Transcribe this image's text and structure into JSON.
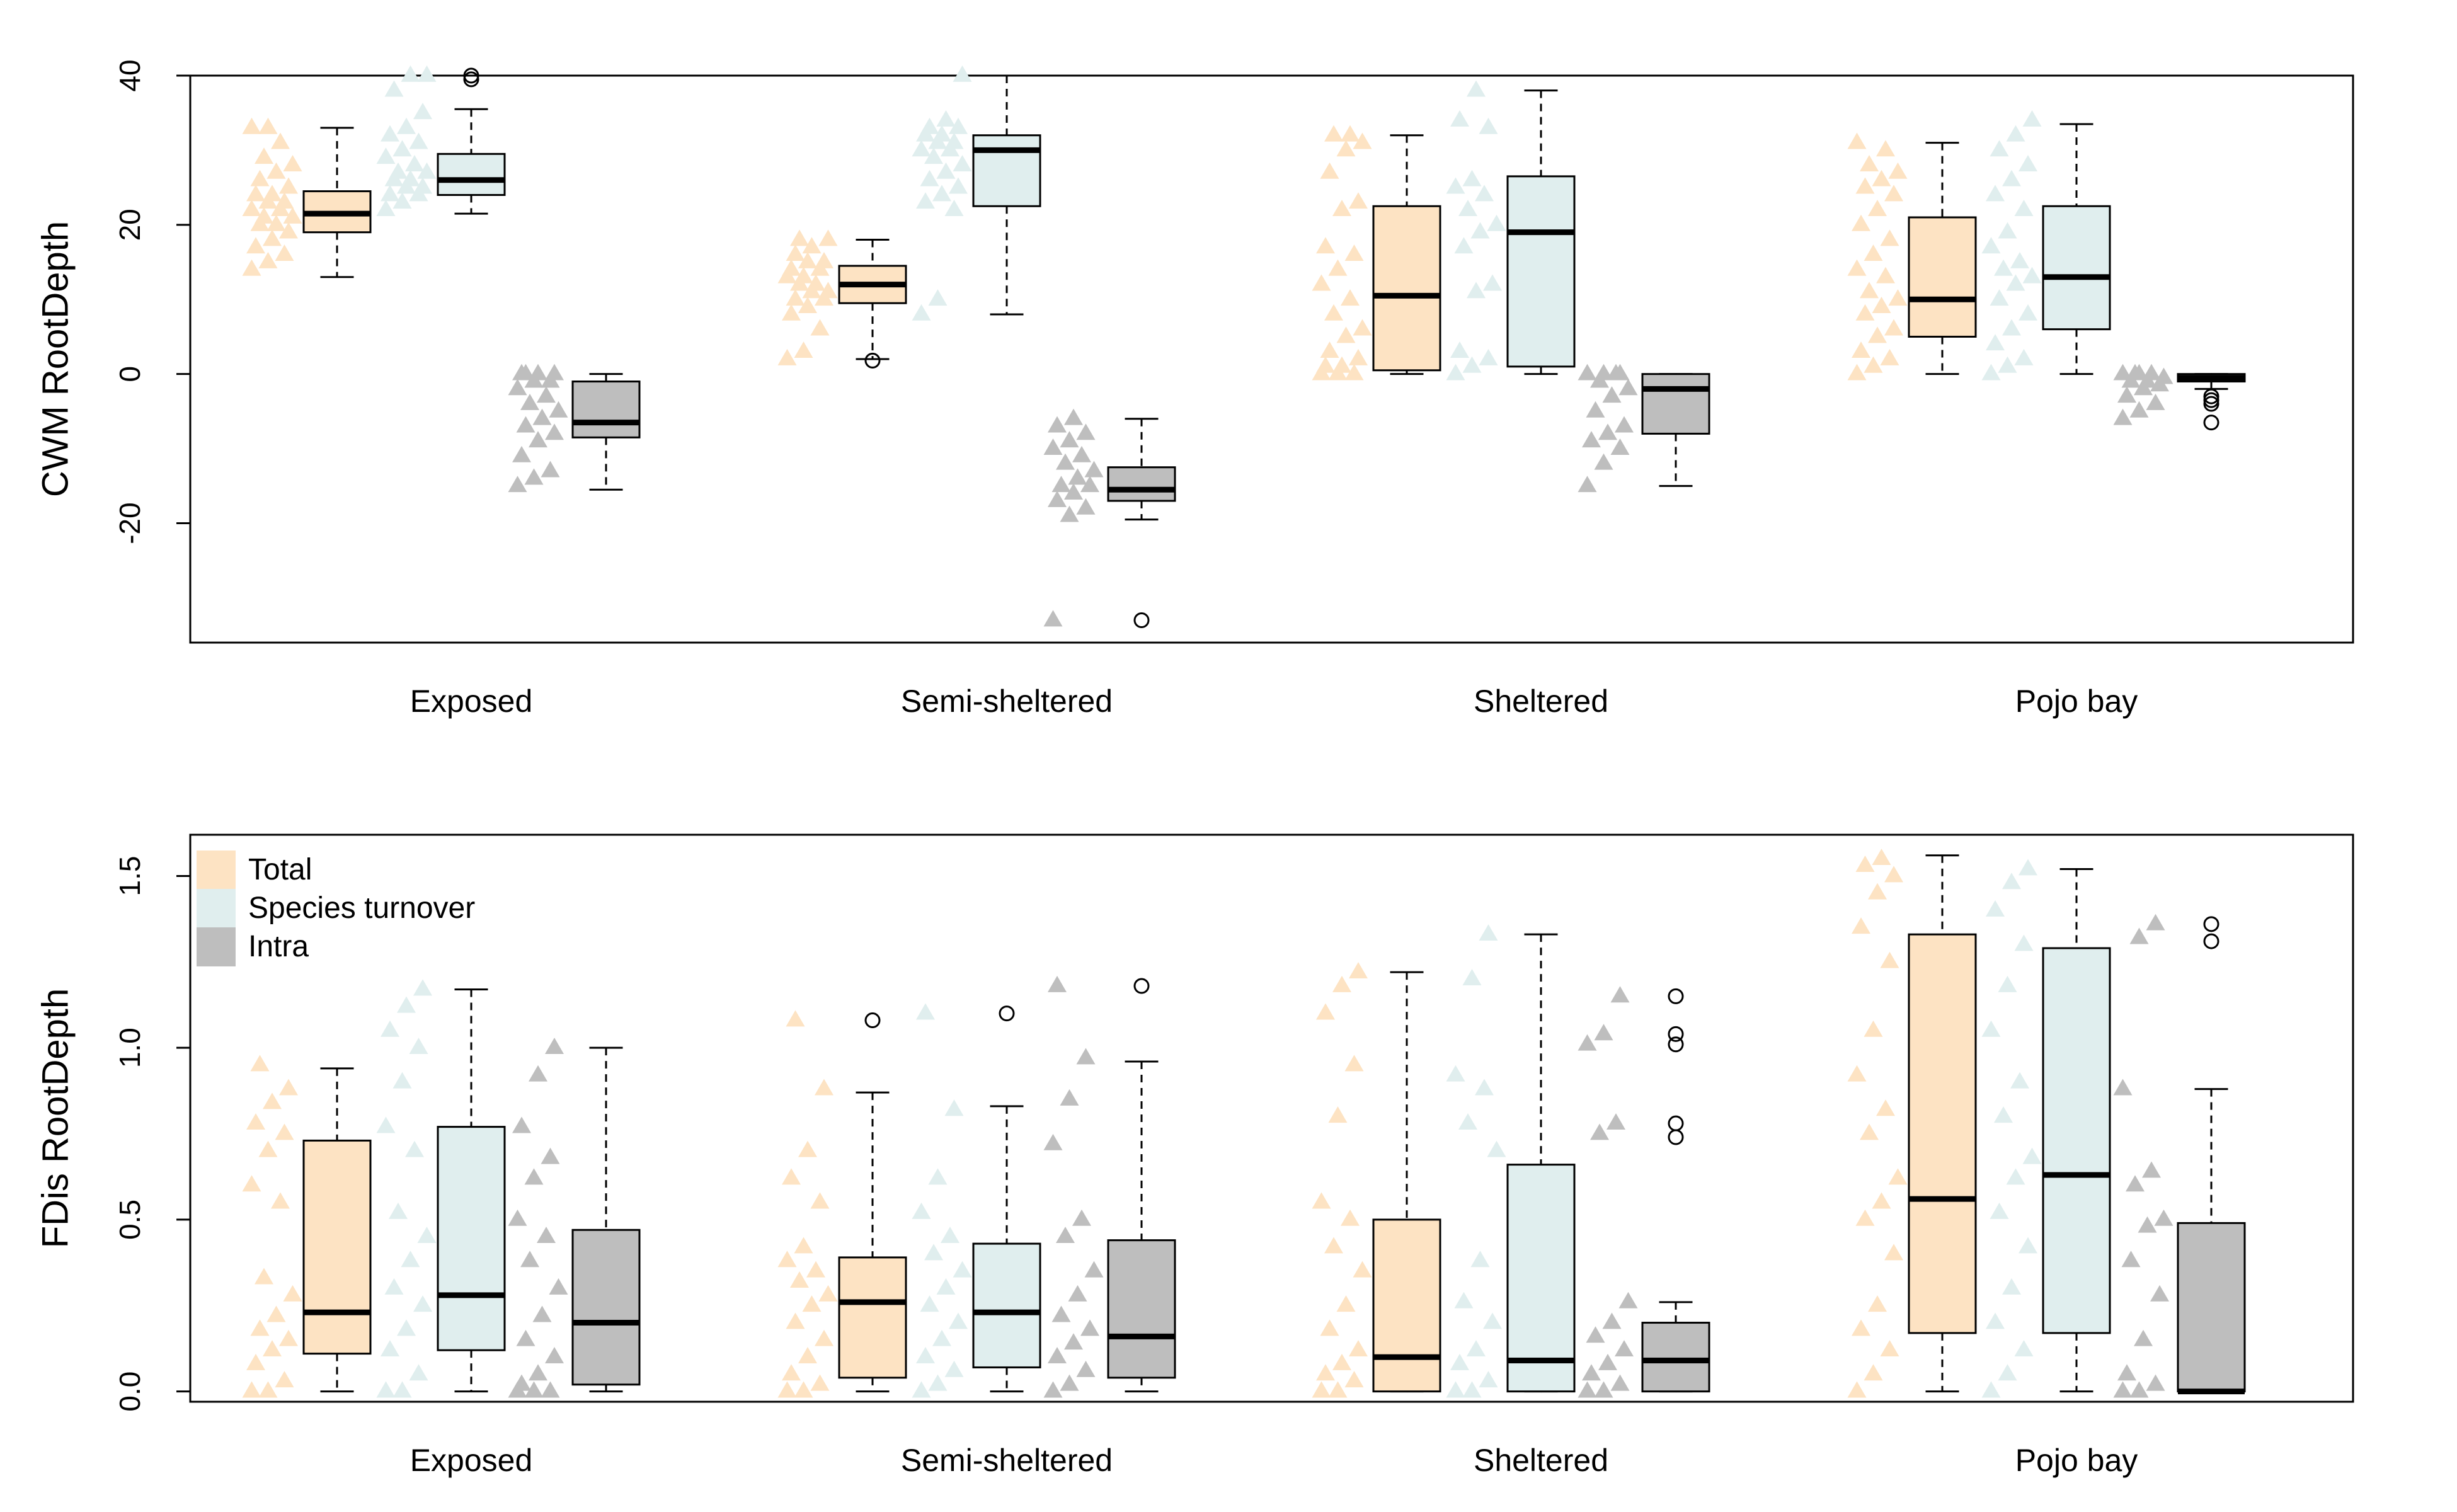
{
  "chart_data": [
    {
      "type": "boxplot",
      "ylabel": "CWM RootDepth",
      "ylim": [
        -36,
        40
      ],
      "yticks": [
        -20,
        0,
        20,
        40
      ],
      "categories": [
        "Exposed",
        "Semi-sheltered",
        "Sheltered",
        "Pojo bay"
      ],
      "series": [
        {
          "name": "Total",
          "color": "#fde3c3",
          "boxes": [
            {
              "min": 13,
              "q1": 19,
              "median": 21.5,
              "q3": 24.5,
              "max": 33,
              "outliers": [],
              "points": [
                14,
                15,
                16,
                17,
                18,
                19,
                20,
                20,
                21,
                21,
                22,
                22,
                23,
                23,
                24,
                24,
                25,
                26,
                27,
                28,
                29,
                31,
                33,
                33
              ]
            },
            {
              "min": 2,
              "q1": 9.5,
              "median": 12,
              "q3": 14.5,
              "max": 18,
              "outliers": [
                1.8
              ],
              "points": [
                2,
                3,
                6,
                8,
                9,
                10,
                10,
                11,
                11,
                12,
                12,
                13,
                13,
                14,
                14,
                15,
                15,
                16,
                17,
                18,
                18
              ]
            },
            {
              "min": 0,
              "q1": 0.5,
              "median": 10.5,
              "q3": 22.5,
              "max": 32,
              "outliers": [],
              "points": [
                0,
                0,
                0,
                1,
                1,
                2,
                3,
                5,
                6,
                8,
                10,
                12,
                14,
                16,
                17,
                22,
                23,
                27,
                30,
                31,
                32,
                32
              ]
            },
            {
              "min": 0,
              "q1": 5,
              "median": 10,
              "q3": 21,
              "max": 31,
              "outliers": [],
              "points": [
                0,
                1,
                2,
                3,
                5,
                6,
                8,
                9,
                10,
                11,
                13,
                14,
                16,
                18,
                20,
                22,
                24,
                25,
                26,
                27,
                28,
                30,
                31
              ]
            }
          ]
        },
        {
          "name": "Species turnover",
          "color": "#e0eeee",
          "boxes": [
            {
              "min": 21.5,
              "q1": 24,
              "median": 26,
              "q3": 29.5,
              "max": 35.5,
              "outliers": [
                39.5,
                40
              ],
              "points": [
                22,
                23,
                24,
                24,
                25,
                25,
                26,
                26,
                27,
                27,
                28,
                29,
                30,
                31,
                32,
                33,
                35,
                38,
                40,
                40
              ]
            },
            {
              "min": 8,
              "q1": 22.5,
              "median": 30,
              "q3": 32,
              "max": 40,
              "outliers": [],
              "points": [
                8,
                10,
                22,
                23,
                24,
                25,
                26,
                27,
                28,
                29,
                30,
                30,
                31,
                31,
                32,
                32,
                33,
                33,
                34,
                40
              ]
            },
            {
              "min": 0,
              "q1": 1,
              "median": 19,
              "q3": 26.5,
              "max": 38,
              "outliers": [],
              "points": [
                0,
                1,
                2,
                3,
                11,
                12,
                17,
                19,
                20,
                22,
                24,
                25,
                26,
                33,
                34,
                38
              ]
            },
            {
              "min": 0,
              "q1": 6,
              "median": 13,
              "q3": 22.5,
              "max": 33.5,
              "outliers": [],
              "points": [
                0,
                1,
                2,
                4,
                6,
                8,
                10,
                12,
                13,
                14,
                15,
                17,
                19,
                22,
                24,
                26,
                28,
                30,
                32,
                34
              ]
            }
          ]
        },
        {
          "name": "Intra",
          "color": "#bebebe",
          "boxes": [
            {
              "min": -15.5,
              "q1": -8.5,
              "median": -6.5,
              "q3": -1,
              "max": 0,
              "outliers": [],
              "points": [
                -15,
                -14,
                -13,
                -11,
                -9,
                -8,
                -7,
                -6,
                -5,
                -4,
                -3,
                -2,
                -1,
                -1,
                0,
                0,
                0,
                0
              ]
            },
            {
              "min": -19.5,
              "q1": -17,
              "median": -15.5,
              "q3": -12.5,
              "max": -6,
              "outliers": [
                -33
              ],
              "points": [
                -33,
                -19,
                -18,
                -17,
                -16,
                -15,
                -15,
                -14,
                -13,
                -12,
                -11,
                -10,
                -9,
                -8,
                -7,
                -6
              ]
            },
            {
              "min": -15,
              "q1": -8,
              "median": -2,
              "q3": 0,
              "max": 0,
              "outliers": [],
              "points": [
                -15,
                -12,
                -10,
                -9,
                -8,
                -7,
                -5,
                -3,
                -2,
                -1,
                0,
                0,
                0,
                0
              ]
            },
            {
              "min": -2,
              "q1": -1,
              "median": -0.5,
              "q3": 0,
              "max": 0,
              "outliers": [
                -3,
                -3.5,
                -4,
                -6.5
              ],
              "points": [
                -6,
                -5,
                -4,
                -3,
                -2,
                -1.5,
                -1,
                -1,
                -0.5,
                0,
                0,
                0,
                0
              ]
            }
          ]
        }
      ]
    },
    {
      "type": "boxplot",
      "ylabel": "FDis RootDepth",
      "ylim": [
        -0.03,
        1.62
      ],
      "yticks": [
        0.0,
        0.5,
        1.0,
        1.5
      ],
      "ytick_labels": [
        "0.0",
        "0.5",
        "1.0",
        "1.5"
      ],
      "categories": [
        "Exposed",
        "Semi-sheltered",
        "Sheltered",
        "Pojo bay"
      ],
      "legend": {
        "position": "top-left",
        "entries": [
          "Total",
          "Species turnover",
          "Intra"
        ]
      },
      "series": [
        {
          "name": "Total",
          "color": "#fde3c3",
          "boxes": [
            {
              "min": 0,
              "q1": 0.11,
              "median": 0.23,
              "q3": 0.73,
              "max": 0.94,
              "outliers": [],
              "points": [
                0,
                0,
                0.03,
                0.08,
                0.12,
                0.15,
                0.18,
                0.22,
                0.28,
                0.33,
                0.55,
                0.6,
                0.7,
                0.75,
                0.78,
                0.84,
                0.88,
                0.95
              ]
            },
            {
              "min": 0,
              "q1": 0.04,
              "median": 0.26,
              "q3": 0.39,
              "max": 0.87,
              "outliers": [
                1.08
              ],
              "points": [
                0,
                0,
                0.02,
                0.05,
                0.1,
                0.15,
                0.2,
                0.25,
                0.28,
                0.32,
                0.35,
                0.38,
                0.42,
                0.55,
                0.62,
                0.7,
                0.88,
                1.08
              ]
            },
            {
              "min": 0,
              "q1": 0,
              "median": 0.1,
              "q3": 0.5,
              "max": 1.22,
              "outliers": [],
              "points": [
                0,
                0,
                0.03,
                0.05,
                0.08,
                0.12,
                0.18,
                0.25,
                0.35,
                0.42,
                0.5,
                0.55,
                0.8,
                0.95,
                1.1,
                1.18,
                1.22
              ]
            },
            {
              "min": 0,
              "q1": 0.17,
              "median": 0.56,
              "q3": 1.33,
              "max": 1.56,
              "outliers": [],
              "points": [
                0,
                0.05,
                0.12,
                0.18,
                0.25,
                0.4,
                0.5,
                0.55,
                0.62,
                0.75,
                0.82,
                0.92,
                1.05,
                1.25,
                1.35,
                1.45,
                1.5,
                1.53,
                1.55
              ]
            }
          ]
        },
        {
          "name": "Species turnover",
          "color": "#e0eeee",
          "boxes": [
            {
              "min": 0,
              "q1": 0.12,
              "median": 0.28,
              "q3": 0.77,
              "max": 1.17,
              "outliers": [],
              "points": [
                0,
                0,
                0.05,
                0.12,
                0.18,
                0.25,
                0.3,
                0.38,
                0.45,
                0.52,
                0.7,
                0.77,
                0.9,
                1.0,
                1.05,
                1.12,
                1.17
              ]
            },
            {
              "min": 0,
              "q1": 0.07,
              "median": 0.23,
              "q3": 0.43,
              "max": 0.83,
              "outliers": [
                1.1
              ],
              "points": [
                0,
                0.02,
                0.06,
                0.1,
                0.15,
                0.2,
                0.25,
                0.3,
                0.35,
                0.4,
                0.45,
                0.52,
                0.62,
                0.82,
                1.1
              ]
            },
            {
              "min": 0,
              "q1": 0,
              "median": 0.09,
              "q3": 0.66,
              "max": 1.33,
              "outliers": [],
              "points": [
                0,
                0,
                0.03,
                0.08,
                0.12,
                0.2,
                0.26,
                0.38,
                0.7,
                0.78,
                0.88,
                0.92,
                1.2,
                1.33
              ]
            },
            {
              "min": 0,
              "q1": 0.17,
              "median": 0.63,
              "q3": 1.29,
              "max": 1.52,
              "outliers": [],
              "points": [
                0,
                0.05,
                0.12,
                0.2,
                0.3,
                0.42,
                0.52,
                0.62,
                0.68,
                0.8,
                0.9,
                1.05,
                1.18,
                1.3,
                1.4,
                1.48,
                1.52
              ]
            }
          ]
        },
        {
          "name": "Intra",
          "color": "#bebebe",
          "boxes": [
            {
              "min": 0,
              "q1": 0.02,
              "median": 0.2,
              "q3": 0.47,
              "max": 1.0,
              "outliers": [],
              "points": [
                0,
                0,
                0,
                0.02,
                0.05,
                0.1,
                0.15,
                0.22,
                0.3,
                0.38,
                0.45,
                0.5,
                0.62,
                0.68,
                0.77,
                0.92,
                1.0
              ]
            },
            {
              "min": 0,
              "q1": 0.04,
              "median": 0.16,
              "q3": 0.44,
              "max": 0.96,
              "outliers": [
                1.18
              ],
              "points": [
                0,
                0.02,
                0.06,
                0.1,
                0.14,
                0.18,
                0.22,
                0.28,
                0.35,
                0.45,
                0.5,
                0.72,
                0.85,
                0.97,
                1.18
              ]
            },
            {
              "min": 0,
              "q1": 0,
              "median": 0.09,
              "q3": 0.2,
              "max": 0.26,
              "outliers": [
                0.74,
                0.78,
                1.01,
                1.04,
                1.15
              ],
              "points": [
                0,
                0,
                0.02,
                0.05,
                0.08,
                0.12,
                0.16,
                0.2,
                0.26,
                0.75,
                0.78,
                1.01,
                1.04,
                1.15
              ]
            },
            {
              "min": 0,
              "q1": 0,
              "median": 0,
              "q3": 0.49,
              "max": 0.88,
              "outliers": [
                1.31,
                1.36
              ],
              "points": [
                0,
                0,
                0.02,
                0.05,
                0.15,
                0.28,
                0.38,
                0.48,
                0.5,
                0.6,
                0.64,
                0.88,
                1.32,
                1.36
              ]
            }
          ]
        }
      ]
    }
  ]
}
